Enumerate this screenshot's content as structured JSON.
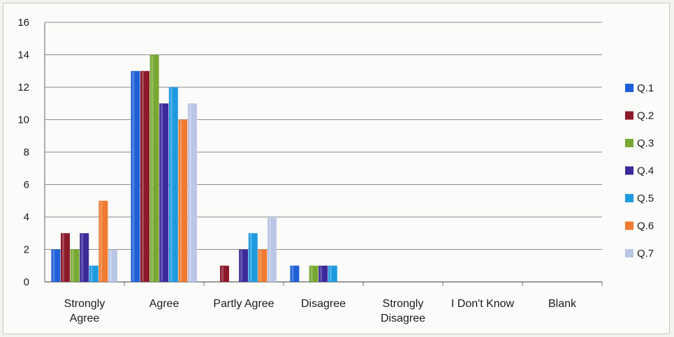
{
  "chart_data": {
    "type": "bar",
    "title": "",
    "xlabel": "",
    "ylabel": "",
    "ylim": [
      0,
      16
    ],
    "yticks": [
      0,
      2,
      4,
      6,
      8,
      10,
      12,
      14,
      16
    ],
    "grid": true,
    "legend_position": "right",
    "categories": [
      "Strongly Agree",
      "Agree",
      "Partly Agree",
      "Disagree",
      "Strongly Disagree",
      "I Don't Know",
      "Blank"
    ],
    "series": [
      {
        "name": "Q.1",
        "color": "#1f5fd6",
        "values": [
          2,
          13,
          0,
          1,
          0,
          0,
          0
        ]
      },
      {
        "name": "Q.2",
        "color": "#8c1a2a",
        "values": [
          3,
          13,
          1,
          0,
          0,
          0,
          0
        ]
      },
      {
        "name": "Q.3",
        "color": "#78a832",
        "values": [
          2,
          14,
          0,
          1,
          0,
          0,
          0
        ]
      },
      {
        "name": "Q.4",
        "color": "#3b2a9a",
        "values": [
          3,
          11,
          2,
          1,
          0,
          0,
          0
        ]
      },
      {
        "name": "Q.5",
        "color": "#1e9ae0",
        "values": [
          1,
          12,
          3,
          1,
          0,
          0,
          0
        ]
      },
      {
        "name": "Q.6",
        "color": "#f07a30",
        "values": [
          5,
          10,
          2,
          0,
          0,
          0,
          0
        ]
      },
      {
        "name": "Q.7",
        "color": "#b9c6e6",
        "values": [
          2,
          11,
          4,
          0,
          0,
          0,
          0
        ]
      }
    ]
  }
}
